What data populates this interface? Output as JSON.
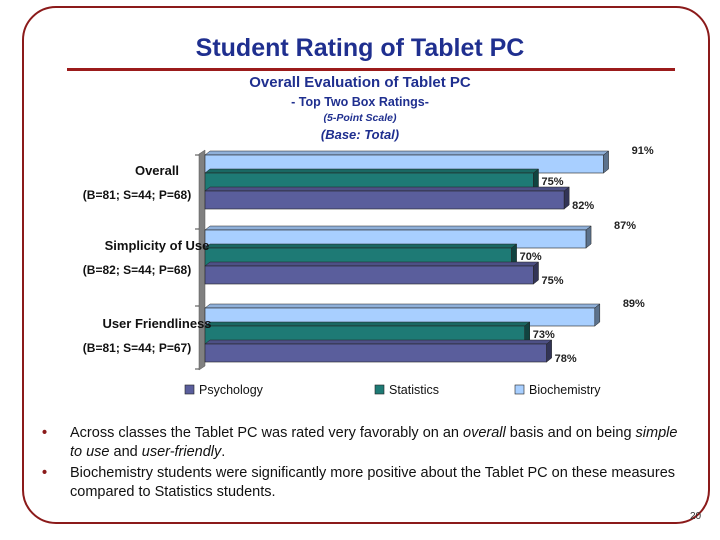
{
  "slide": {
    "title": "Student Rating of Tablet PC",
    "page_number": "20"
  },
  "chart_data": {
    "type": "bar",
    "orientation": "horizontal",
    "title": "Overall Evaluation of Tablet PC",
    "subtitle": "- Top Two Box Ratings-",
    "scale_note": "(5-Point Scale)",
    "base_note": "(Base:  Total)",
    "categories": [
      {
        "name": "Overall",
        "base": "(B=81; S=44; P=68)"
      },
      {
        "name": "Simplicity of Use",
        "base": "(B=82; S=44; P=68)"
      },
      {
        "name": "User Friendliness",
        "base": "(B=81; S=44; P=67)"
      }
    ],
    "series": [
      {
        "name": "Biochemistry",
        "values": [
          91,
          87,
          89
        ],
        "labels": [
          "91%",
          "87%",
          "89%"
        ],
        "color": "#a8cfff"
      },
      {
        "name": "Statistics",
        "values": [
          75,
          70,
          73
        ],
        "labels": [
          "75%",
          "70%",
          "73%"
        ],
        "color": "#1e7a75"
      },
      {
        "name": "Psychology",
        "values": [
          82,
          75,
          78
        ],
        "labels": [
          "82%",
          "75%",
          "78%"
        ],
        "color": "#5a5e9c"
      }
    ],
    "legend_order": [
      "Psychology",
      "Statistics",
      "Biochemistry"
    ],
    "legend_position": "bottom",
    "xlim": [
      0,
      100
    ],
    "three_d": true
  },
  "bullets": [
    {
      "parts": [
        {
          "text": "Across classes the Tablet PC was rated very favorably on an ",
          "italic": false
        },
        {
          "text": "overall",
          "italic": true
        },
        {
          "text": " basis and on being ",
          "italic": false
        },
        {
          "text": "simple to use",
          "italic": true
        },
        {
          "text": " and ",
          "italic": false
        },
        {
          "text": "user-friendly",
          "italic": true
        },
        {
          "text": ".",
          "italic": false
        }
      ]
    },
    {
      "parts": [
        {
          "text": "Biochemistry students were significantly more positive about the Tablet PC on these measures compared to Statistics students.",
          "italic": false
        }
      ]
    }
  ],
  "bullet_symbol": "•"
}
